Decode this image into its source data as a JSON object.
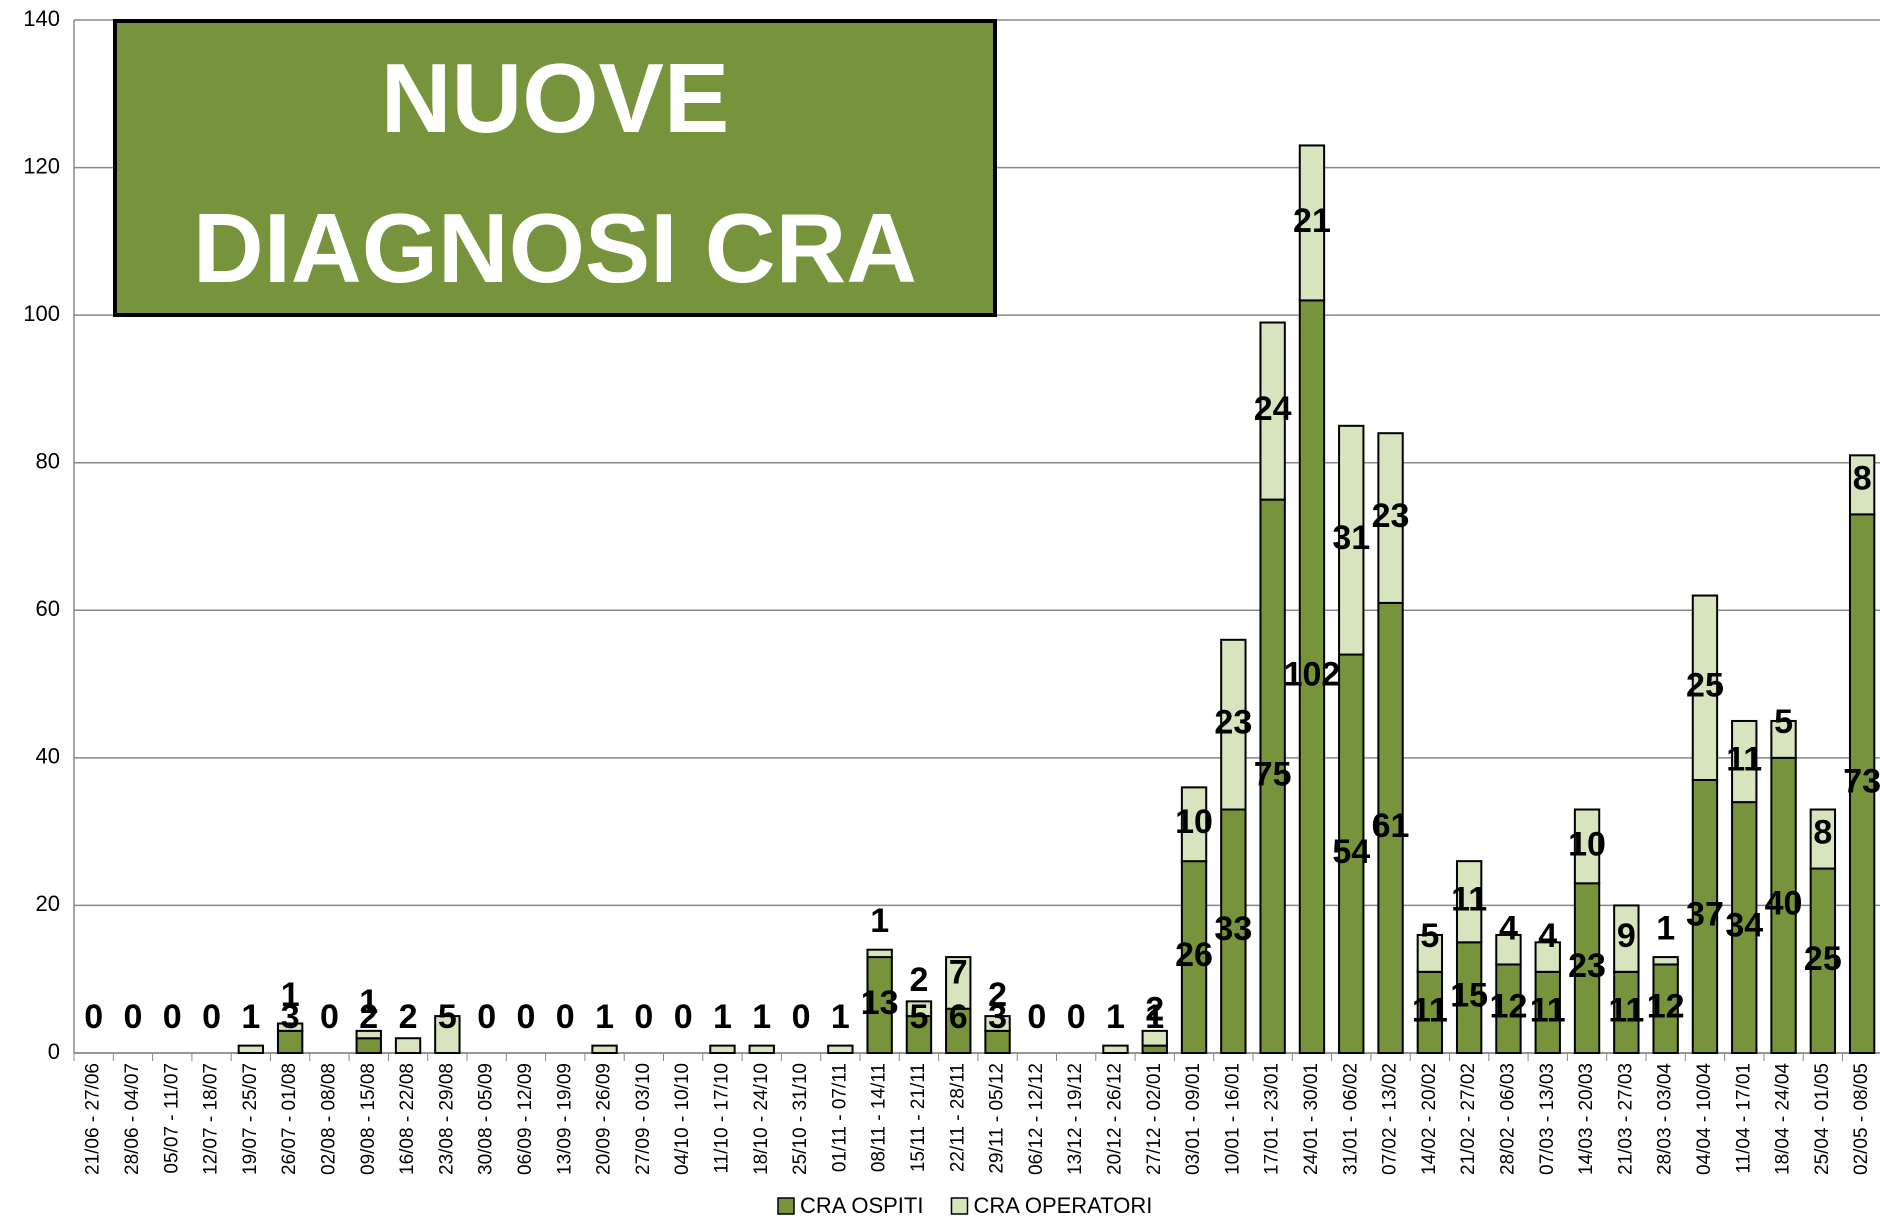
{
  "chart_data": {
    "type": "stacked_bar",
    "title": "NUOVE DIAGNOSI CRA",
    "categories": [
      "21/06 - 27/06",
      "28/06 - 04/07",
      "05/07 - 11/07",
      "12/07 - 18/07",
      "19/07 - 25/07",
      "26/07 - 01/08",
      "02/08 - 08/08",
      "09/08 - 15/08",
      "16/08 - 22/08",
      "23/08 - 29/08",
      "30/08 - 05/09",
      "06/09 - 12/09",
      "13/09 - 19/09",
      "20/09 - 26/09",
      "27/09 - 03/10",
      "04/10 - 10/10",
      "11/10 - 17/10",
      "18/10 - 24/10",
      "25/10 - 31/10",
      "01/11 - 07/11",
      "08/11 - 14/11",
      "15/11 - 21/11",
      "22/11 - 28/11",
      "29/11 - 05/12",
      "06/12 - 12/12",
      "13/12 - 19/12",
      "20/12 - 26/12",
      "27/12 - 02/01",
      "03/01 - 09/01",
      "10/01 - 16/01",
      "17/01 - 23/01",
      "24/01 - 30/01",
      "31/01 - 06/02",
      "07/02 - 13/02",
      "14/02 - 20/02",
      "21/02 - 27/02",
      "28/02 - 06/03",
      "07/03 - 13/03",
      "14/03 - 20/03",
      "21/03 - 27/03",
      "28/03 - 03/04",
      "04/04 - 10/04",
      "11/04 - 17/01",
      "18/04 - 24/04",
      "25/04 - 01/05",
      "02/05 - 08/05"
    ],
    "series": [
      {
        "name": "CRA OSPITI",
        "color": "#77933c",
        "values": [
          0,
          0,
          0,
          0,
          0,
          3,
          0,
          2,
          0,
          0,
          0,
          0,
          0,
          0,
          0,
          0,
          0,
          0,
          0,
          0,
          13,
          5,
          6,
          3,
          0,
          0,
          0,
          1,
          26,
          33,
          75,
          102,
          54,
          61,
          11,
          15,
          12,
          11,
          23,
          11,
          12,
          37,
          34,
          40,
          25,
          73
        ]
      },
      {
        "name": "CRA OPERATORI",
        "color": "#d7e4bd",
        "values": [
          0,
          0,
          0,
          0,
          1,
          1,
          0,
          1,
          2,
          5,
          0,
          0,
          0,
          1,
          0,
          0,
          1,
          1,
          0,
          1,
          1,
          2,
          7,
          2,
          0,
          0,
          1,
          2,
          10,
          23,
          24,
          21,
          31,
          23,
          5,
          11,
          4,
          4,
          10,
          9,
          1,
          25,
          11,
          5,
          8,
          8
        ]
      }
    ],
    "ylim": [
      0,
      140
    ],
    "yticks": [
      0,
      20,
      40,
      60,
      80,
      100,
      120,
      140
    ],
    "grid": true
  }
}
